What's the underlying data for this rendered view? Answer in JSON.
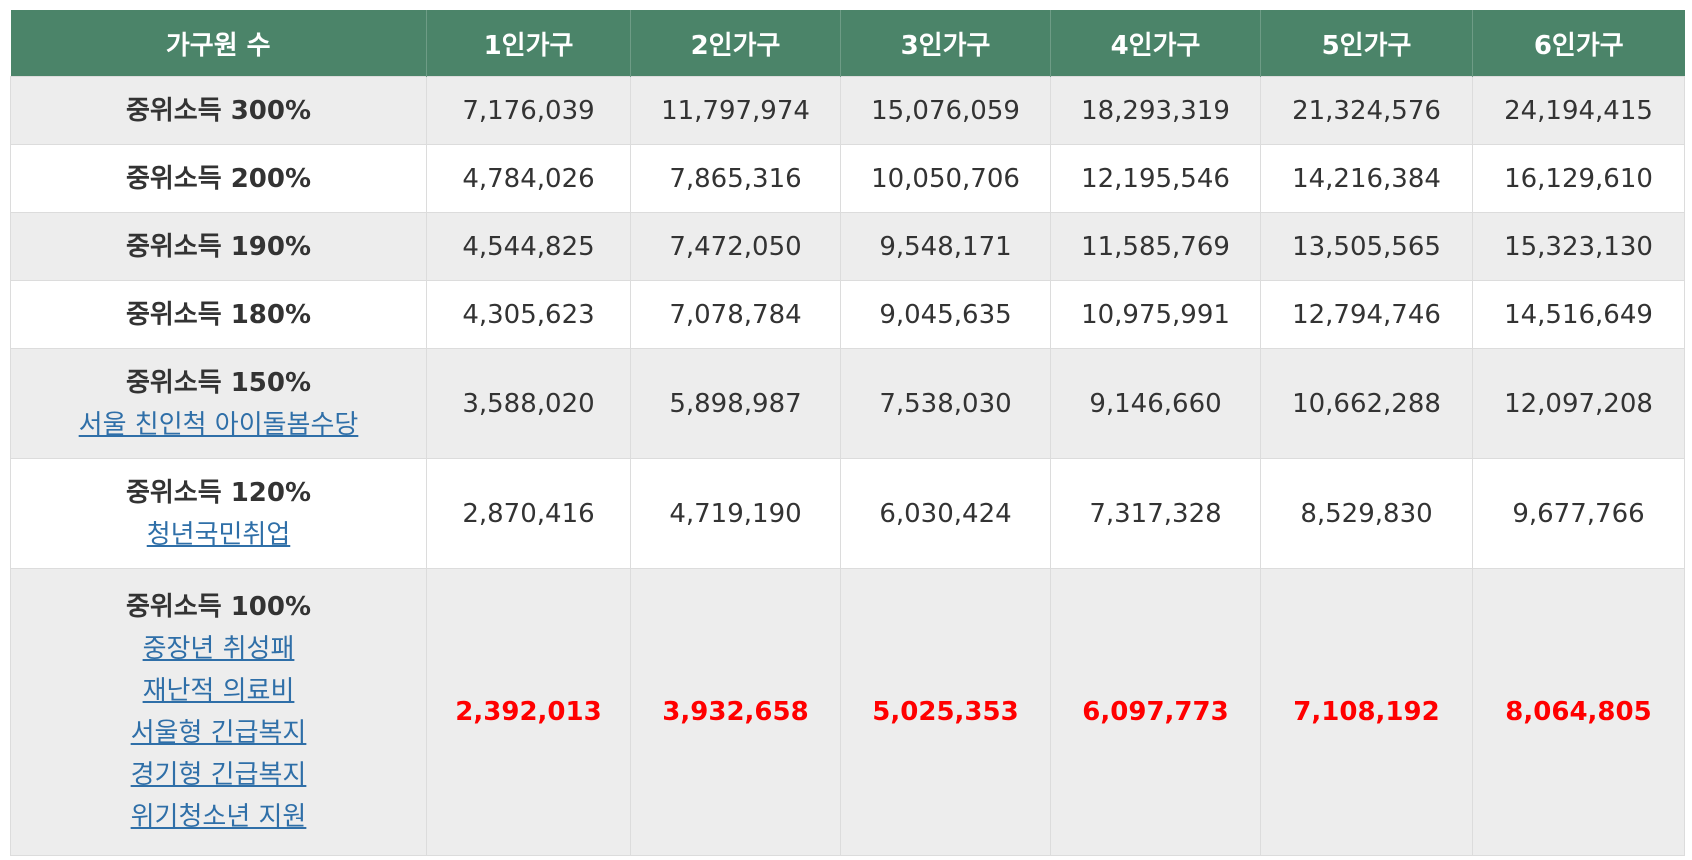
{
  "header": [
    "가구원 수",
    "1인가구",
    "2인가구",
    "3인가구",
    "4인가구",
    "5인가구",
    "6인가구"
  ],
  "rows": [
    {
      "label": "중위소득 300%",
      "links": [],
      "values": [
        "7,176,039",
        "11,797,974",
        "15,076,059",
        "18,293,319",
        "21,324,576",
        "24,194,415"
      ]
    },
    {
      "label": "중위소득 200%",
      "links": [],
      "values": [
        "4,784,026",
        "7,865,316",
        "10,050,706",
        "12,195,546",
        "14,216,384",
        "16,129,610"
      ]
    },
    {
      "label": "중위소득 190%",
      "links": [],
      "values": [
        "4,544,825",
        "7,472,050",
        "9,548,171",
        "11,585,769",
        "13,505,565",
        "15,323,130"
      ]
    },
    {
      "label": "중위소득 180%",
      "links": [],
      "values": [
        "4,305,623",
        "7,078,784",
        "9,045,635",
        "10,975,991",
        "12,794,746",
        "14,516,649"
      ]
    },
    {
      "label": "중위소득 150%",
      "links": [
        "서울 친인척 아이돌봄수당"
      ],
      "values": [
        "3,588,020",
        "5,898,987",
        "7,538,030",
        "9,146,660",
        "10,662,288",
        "12,097,208"
      ]
    },
    {
      "label": "중위소득 120%",
      "links": [
        "청년국민취업"
      ],
      "values": [
        "2,870,416",
        "4,719,190",
        "6,030,424",
        "7,317,328",
        "8,529,830",
        "9,677,766"
      ]
    },
    {
      "label": "중위소득 100%",
      "links": [
        "중장년 취성패",
        "재난적 의료비",
        "서울형 긴급복지",
        "경기형 긴급복지",
        "위기청소년 지원"
      ],
      "values": [
        "2,392,013",
        "3,932,658",
        "5,025,353",
        "6,097,773",
        "7,108,192",
        "8,064,805"
      ]
    }
  ],
  "colors": {
    "header_bg": "#4b8469",
    "highlight": "#ff0000",
    "link": "#2f6fa8",
    "shade": "#ededed"
  }
}
